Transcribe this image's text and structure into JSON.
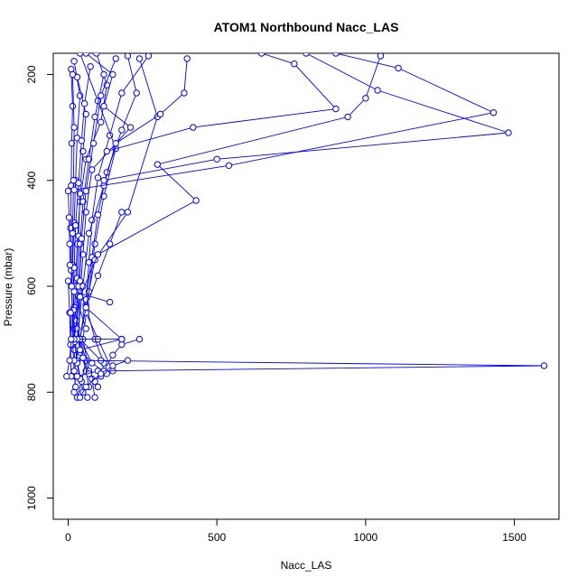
{
  "chart_data": {
    "type": "line",
    "title": "ATOM1 Northbound Nacc_LAS",
    "xlabel": "Nacc_LAS",
    "ylabel": "Pressure (mbar)",
    "xlim": [
      -50,
      1650
    ],
    "ylim": [
      1040,
      160
    ],
    "y_reversed": true,
    "x_ticks": [
      0,
      500,
      1000,
      1500
    ],
    "y_ticks": [
      200,
      400,
      600,
      800,
      1000
    ],
    "grid": false,
    "legend": "none",
    "marker": "open-circle",
    "color": "#0000ff",
    "series": [
      {
        "points": [
          [
            95,
            160
          ],
          [
            130,
            220
          ],
          [
            110,
            290
          ],
          [
            60,
            360
          ],
          [
            40,
            440
          ],
          [
            30,
            520
          ],
          [
            25,
            600
          ],
          [
            20,
            680
          ],
          [
            30,
            740
          ],
          [
            50,
            800
          ],
          [
            65,
            810
          ]
        ]
      },
      {
        "points": [
          [
            60,
            160
          ],
          [
            150,
            200
          ],
          [
            120,
            260
          ],
          [
            210,
            300
          ],
          [
            80,
            380
          ],
          [
            60,
            460
          ],
          [
            50,
            540
          ],
          [
            40,
            620
          ],
          [
            35,
            700
          ],
          [
            60,
            760
          ],
          [
            70,
            790
          ]
        ]
      },
      {
        "points": [
          [
            20,
            175
          ],
          [
            40,
            240
          ],
          [
            30,
            320
          ],
          [
            25,
            400
          ],
          [
            20,
            480
          ],
          [
            15,
            560
          ],
          [
            20,
            640
          ],
          [
            40,
            700
          ],
          [
            60,
            740
          ],
          [
            45,
            780
          ],
          [
            30,
            810
          ]
        ]
      },
      {
        "points": [
          [
            10,
            190
          ],
          [
            15,
            260
          ],
          [
            12,
            330
          ],
          [
            10,
            410
          ],
          [
            8,
            490
          ],
          [
            10,
            570
          ],
          [
            15,
            650
          ],
          [
            20,
            720
          ],
          [
            25,
            770
          ],
          [
            20,
            800
          ]
        ]
      },
      {
        "points": [
          [
            30,
            205
          ],
          [
            60,
            275
          ],
          [
            50,
            345
          ],
          [
            40,
            425
          ],
          [
            35,
            505
          ],
          [
            30,
            585
          ],
          [
            28,
            665
          ],
          [
            40,
            725
          ],
          [
            80,
            775
          ],
          [
            90,
            810
          ]
        ]
      },
      {
        "points": [
          [
            270,
            165
          ],
          [
            180,
            235
          ],
          [
            140,
            315
          ],
          [
            100,
            395
          ],
          [
            80,
            475
          ],
          [
            70,
            555
          ],
          [
            60,
            635
          ],
          [
            90,
            700
          ],
          [
            120,
            745
          ],
          [
            110,
            770
          ]
        ]
      },
      {
        "points": [
          [
            40,
            160
          ],
          [
            100,
            250
          ],
          [
            160,
            340
          ],
          [
            120,
            430
          ],
          [
            90,
            520
          ],
          [
            70,
            610
          ],
          [
            50,
            700
          ],
          [
            70,
            760
          ],
          [
            100,
            790
          ]
        ]
      },
      {
        "points": [
          [
            75,
            185
          ],
          [
            55,
            255
          ],
          [
            45,
            325
          ],
          [
            35,
            405
          ],
          [
            25,
            485
          ],
          [
            20,
            565
          ],
          [
            18,
            645
          ],
          [
            22,
            705
          ],
          [
            30,
            745
          ],
          [
            40,
            775
          ]
        ]
      },
      {
        "points": [
          [
            120,
            200
          ],
          [
            90,
            280
          ],
          [
            70,
            360
          ],
          [
            50,
            440
          ],
          [
            40,
            520
          ],
          [
            35,
            600
          ],
          [
            30,
            680
          ],
          [
            50,
            735
          ],
          [
            70,
            765
          ]
        ]
      },
      {
        "points": [
          [
            200,
            165
          ],
          [
            230,
            235
          ],
          [
            180,
            305
          ],
          [
            130,
            385
          ],
          [
            100,
            465
          ],
          [
            80,
            545
          ],
          [
            60,
            625
          ],
          [
            40,
            700
          ],
          [
            80,
            745
          ],
          [
            130,
            765
          ]
        ]
      },
      {
        "points": [
          [
            15,
            200
          ],
          [
            20,
            300
          ],
          [
            18,
            400
          ],
          [
            15,
            500
          ],
          [
            12,
            600
          ],
          [
            15,
            700
          ],
          [
            20,
            760
          ],
          [
            25,
            790
          ]
        ]
      },
      {
        "points": [
          [
            160,
            170
          ],
          [
            110,
            240
          ],
          [
            85,
            330
          ],
          [
            60,
            420
          ],
          [
            45,
            510
          ],
          [
            40,
            590
          ],
          [
            60,
            650
          ],
          [
            100,
            700
          ],
          [
            150,
            760
          ]
        ]
      },
      {
        "points": [
          [
            240,
            170
          ],
          [
            300,
            280
          ],
          [
            200,
            460
          ],
          [
            90,
            550
          ],
          [
            60,
            640
          ],
          [
            40,
            700
          ],
          [
            110,
            740
          ]
        ]
      },
      {
        "points": [
          [
            400,
            170
          ],
          [
            390,
            235
          ],
          [
            310,
            275
          ],
          [
            160,
            330
          ],
          [
            120,
            410
          ],
          [
            70,
            500
          ],
          [
            50,
            600
          ],
          [
            30,
            700
          ],
          [
            180,
            700
          ]
        ]
      },
      {
        "points": [
          [
            650,
            160
          ],
          [
            760,
            180
          ],
          [
            900,
            265
          ],
          [
            420,
            300
          ],
          [
            130,
            345
          ]
        ]
      },
      {
        "points": [
          [
            1050,
            165
          ],
          [
            1000,
            245
          ],
          [
            940,
            280
          ],
          [
            300,
            370
          ],
          [
            430,
            438
          ],
          [
            100,
            540
          ],
          [
            40,
            620
          ],
          [
            20,
            700
          ]
        ]
      },
      {
        "points": [
          [
            900,
            160
          ],
          [
            1110,
            188
          ],
          [
            1430,
            272
          ],
          [
            540,
            372
          ],
          [
            20,
            418
          ]
        ]
      },
      {
        "points": [
          [
            800,
            160
          ],
          [
            1040,
            230
          ],
          [
            1480,
            310
          ],
          [
            500,
            360
          ],
          [
            120,
            400
          ]
        ]
      },
      {
        "points": [
          [
            140,
            630
          ],
          [
            20,
            610
          ],
          [
            60,
            680
          ]
        ]
      },
      {
        "points": [
          [
            180,
            700
          ],
          [
            40,
            720
          ],
          [
            20,
            740
          ],
          [
            1600,
            750
          ],
          [
            100,
            760
          ],
          [
            30,
            770
          ]
        ]
      },
      {
        "points": [
          [
            240,
            700
          ],
          [
            180,
            710
          ],
          [
            150,
            730
          ],
          [
            120,
            760
          ],
          [
            90,
            780
          ]
        ]
      },
      {
        "points": [
          [
            200,
            740
          ],
          [
            150,
            750
          ],
          [
            110,
            765
          ],
          [
            60,
            790
          ],
          [
            40,
            810
          ]
        ]
      },
      {
        "points": [
          [
            180,
            460
          ],
          [
            140,
            520
          ],
          [
            100,
            580
          ],
          [
            60,
            640
          ],
          [
            180,
            700
          ]
        ]
      },
      {
        "points": [
          [
            0,
            590
          ],
          [
            5,
            650
          ],
          [
            8,
            710
          ],
          [
            10,
            770
          ]
        ]
      },
      {
        "points": [
          [
            -5,
            770
          ],
          [
            5,
            740
          ],
          [
            10,
            700
          ],
          [
            8,
            650
          ]
        ]
      },
      {
        "points": [
          [
            0,
            420
          ],
          [
            3,
            470
          ],
          [
            5,
            520
          ],
          [
            6,
            560
          ]
        ]
      }
    ]
  }
}
